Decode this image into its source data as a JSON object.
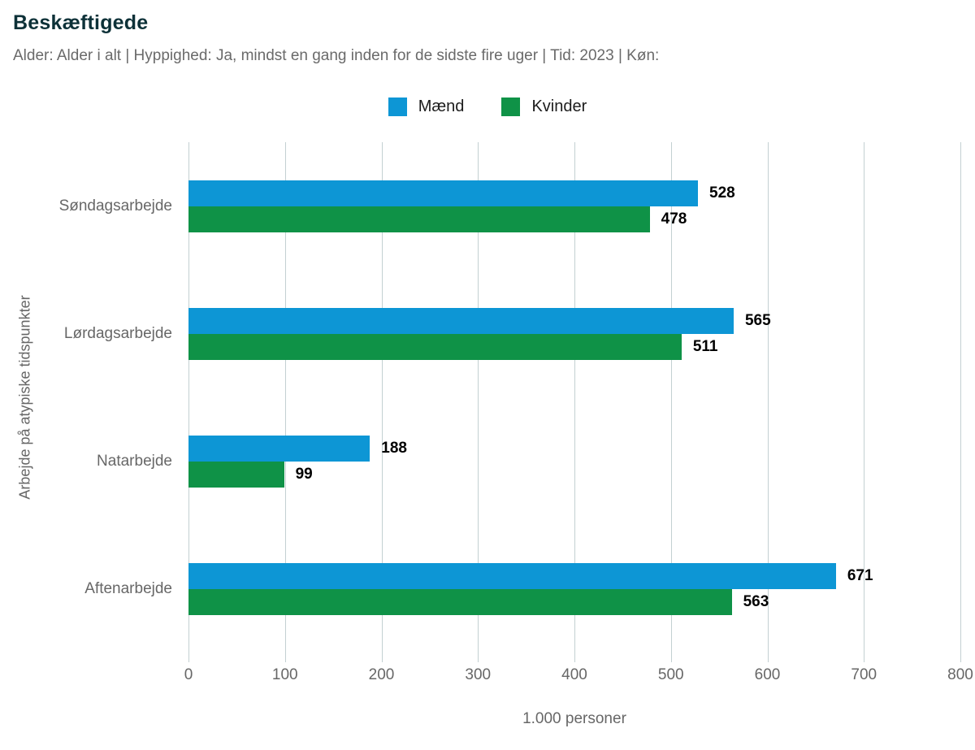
{
  "header": {
    "title": "Beskæftigede",
    "subtitle": "Alder: Alder i alt | Hyppighed: Ja, mindst en gang inden for de sidste fire uger | Tid: 2023 | Køn:"
  },
  "colors": {
    "title": "#0d3138",
    "muted_text": "#676767",
    "grid": "#c3d0d2",
    "maend": "#0d96d5",
    "kvinder": "#0f9247"
  },
  "chart_data": {
    "type": "bar",
    "orientation": "horizontal",
    "title": "Beskæftigede",
    "categories": [
      "Søndagsarbejde",
      "Lørdagsarbejde",
      "Natarbejde",
      "Aftenarbejde"
    ],
    "series": [
      {
        "name": "Mænd",
        "color": "#0d96d5",
        "values": [
          528,
          565,
          188,
          671
        ]
      },
      {
        "name": "Kvinder",
        "color": "#0f9247",
        "values": [
          478,
          511,
          99,
          563
        ]
      }
    ],
    "xlabel": "1.000 personer",
    "ylabel": "Arbejde på atypiske tidspunkter",
    "xlim": [
      0,
      800
    ],
    "xticks": [
      0,
      100,
      200,
      300,
      400,
      500,
      600,
      700,
      800
    ],
    "grid": true,
    "legend_position": "top",
    "value_labels": true
  }
}
